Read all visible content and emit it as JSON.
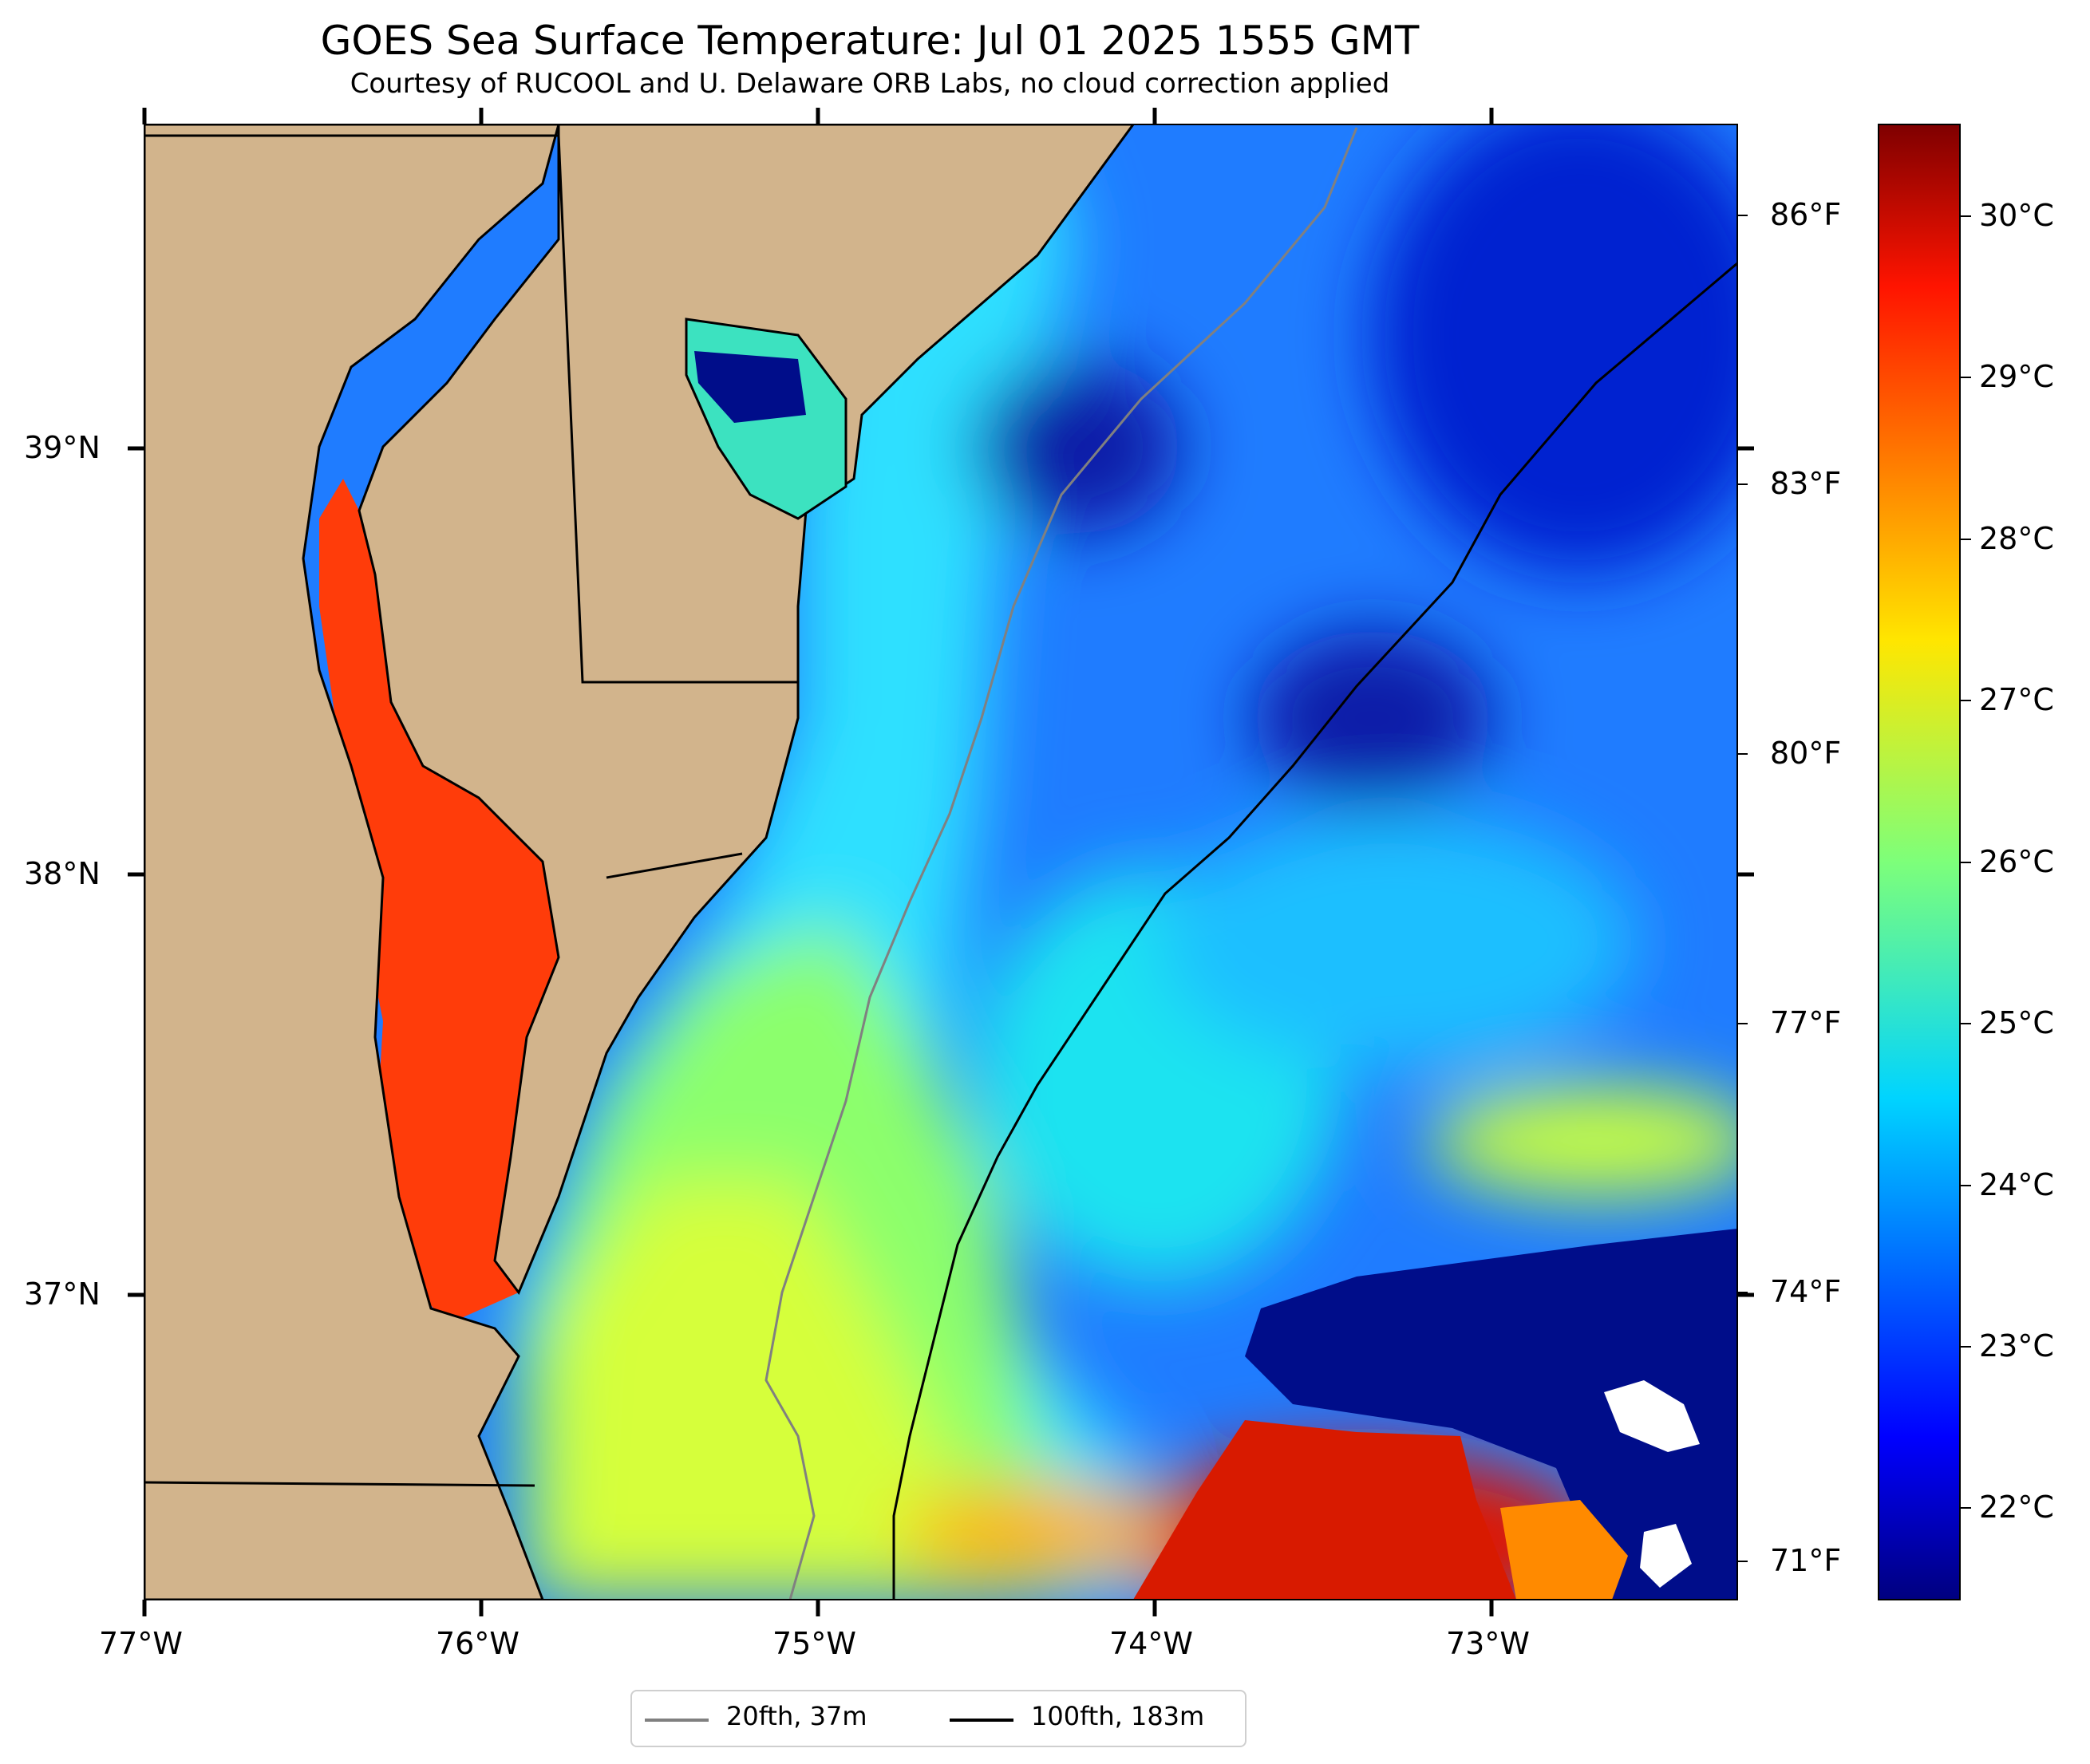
{
  "title": "GOES Sea Surface Temperature: Jul 01 2025 1555 GMT",
  "subtitle": "Courtesy of RUCOOL and U. Delaware ORB Labs, no cloud correction applied",
  "chart_data": {
    "type": "heatmap",
    "variable": "Sea Surface Temperature",
    "lon_range": [
      -77.0,
      -72.25
    ],
    "lat_range": [
      36.55,
      40.05
    ],
    "x_tick_labels": [
      "77°W",
      "76°W",
      "75°W",
      "74°W",
      "73°W"
    ],
    "x_tick_values": [
      -77,
      -76,
      -75,
      -74,
      -73
    ],
    "y_tick_labels": [
      "37°N",
      "38°N",
      "39°N"
    ],
    "y_tick_values": [
      37,
      38,
      39
    ],
    "right_axis_labels": [
      "71°F",
      "74°F",
      "77°F",
      "80°F",
      "83°F",
      "86°F"
    ],
    "right_axis_values_f": [
      71,
      74,
      77,
      80,
      83,
      86
    ],
    "colorbar": {
      "colormap": "jet",
      "range_c": [
        21.5,
        30.5
      ],
      "tick_labels": [
        "22°C",
        "23°C",
        "24°C",
        "25°C",
        "26°C",
        "27°C",
        "28°C",
        "29°C",
        "30°C"
      ],
      "tick_values_c": [
        22,
        23,
        24,
        25,
        26,
        27,
        28,
        29,
        30
      ]
    },
    "land_color": "#d2b48c",
    "legend": {
      "placement": "bottom-center",
      "entries": [
        {
          "label": "20fth, 37m",
          "color": "#808080"
        },
        {
          "label": "100fth, 183m",
          "color": "#000000"
        }
      ]
    }
  }
}
